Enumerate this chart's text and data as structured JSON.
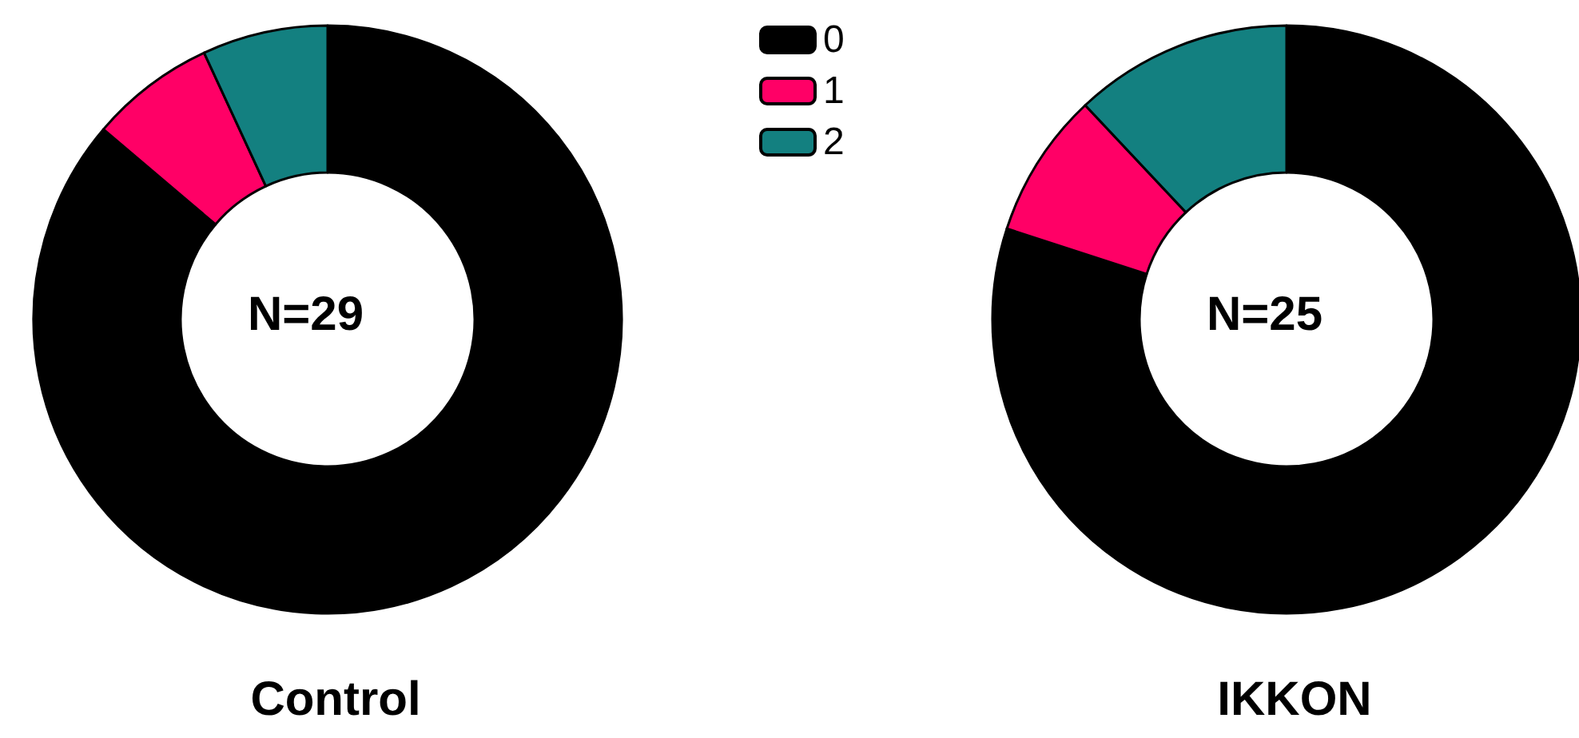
{
  "chart_data": [
    {
      "type": "donut",
      "title": "Control",
      "annotations": [
        "N=29"
      ],
      "categories": [
        "0",
        "1",
        "2"
      ],
      "values": [
        86.2,
        6.9,
        6.9
      ],
      "colors": [
        "#000000",
        "#ff0066",
        "#138080"
      ],
      "legend": "top right"
    },
    {
      "type": "donut",
      "title": "IKKON",
      "annotations": [
        "N=25"
      ],
      "categories": [
        null,
        null,
        null
      ],
      "values": [
        80,
        8,
        12
      ],
      "colors": [
        "#000000",
        "#ff0066",
        "#138080"
      ]
    }
  ]
}
